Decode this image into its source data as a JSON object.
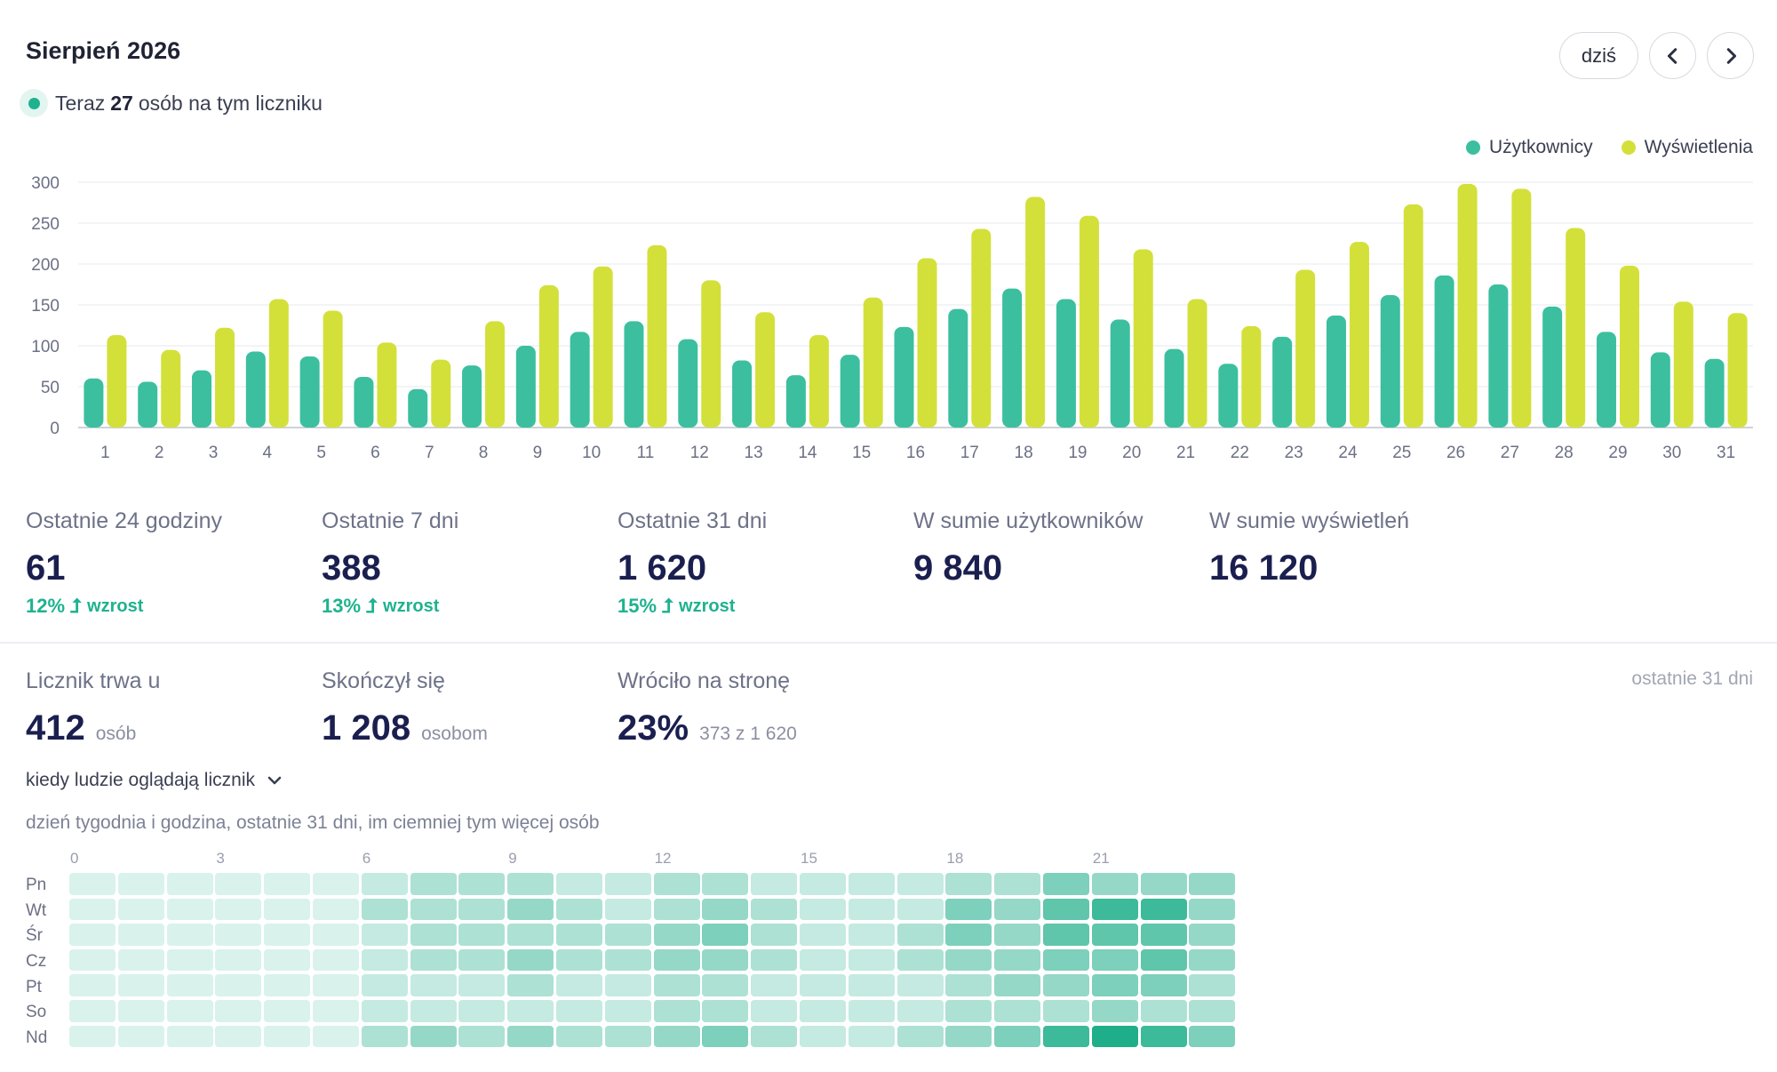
{
  "header": {
    "title": "Sierpień 2026",
    "today_label": "dziś"
  },
  "live": {
    "prefix": "Teraz",
    "count": "27",
    "suffix": "osób na tym liczniku"
  },
  "colors": {
    "users": "#3bbf9f",
    "views": "#d3e03a",
    "accent": "#1fb28f",
    "value": "#1a1f4f"
  },
  "chart_data": {
    "type": "bar",
    "categories": [
      "1",
      "2",
      "3",
      "4",
      "5",
      "6",
      "7",
      "8",
      "9",
      "10",
      "11",
      "12",
      "13",
      "14",
      "15",
      "16",
      "17",
      "18",
      "19",
      "20",
      "21",
      "22",
      "23",
      "24",
      "25",
      "26",
      "27",
      "28",
      "29",
      "30",
      "31"
    ],
    "series": [
      {
        "name": "Użytkownicy",
        "color": "#3bbf9f",
        "values": [
          60,
          56,
          70,
          93,
          87,
          62,
          47,
          76,
          100,
          117,
          130,
          108,
          82,
          64,
          89,
          123,
          145,
          170,
          157,
          132,
          96,
          78,
          111,
          137,
          162,
          186,
          175,
          148,
          117,
          92,
          84
        ]
      },
      {
        "name": "Wyświetlenia",
        "color": "#d3e03a",
        "values": [
          113,
          95,
          122,
          157,
          143,
          104,
          83,
          130,
          174,
          197,
          223,
          180,
          141,
          113,
          159,
          207,
          243,
          282,
          259,
          218,
          157,
          124,
          193,
          227,
          273,
          298,
          292,
          244,
          198,
          154,
          140
        ]
      }
    ],
    "yticks": [
      0,
      50,
      100,
      150,
      200,
      250,
      300
    ],
    "ylim": [
      0,
      300
    ],
    "grid": true,
    "legend": "top-right"
  },
  "stats": [
    {
      "label": "Ostatnie 24 godziny",
      "value": "61",
      "change": "12%",
      "change_word": "wzrost"
    },
    {
      "label": "Ostatnie 7 dni",
      "value": "388",
      "change": "13%",
      "change_word": "wzrost"
    },
    {
      "label": "Ostatnie 31 dni",
      "value": "1 620",
      "change": "15%",
      "change_word": "wzrost"
    },
    {
      "label": "W sumie użytkowników",
      "value": "9 840"
    },
    {
      "label": "W sumie wyświetleń",
      "value": "16 120"
    }
  ],
  "retention": {
    "period_label": "ostatnie 31 dni",
    "items": [
      {
        "label": "Licznik trwa u",
        "value": "412",
        "unit": "osób"
      },
      {
        "label": "Skończył się",
        "value": "1 208",
        "unit": "osobom"
      },
      {
        "label": "Wróciło na stronę",
        "value": "23%",
        "unit": "373 z 1 620"
      }
    ]
  },
  "heatmap": {
    "toggle_label": "kiedy ludzie oglądają licznik",
    "description": "dzień tygodnia i godzina, ostatnie 31 dni, im ciemniej tym więcej osób",
    "hour_labels": [
      "0",
      "3",
      "6",
      "9",
      "12",
      "15",
      "18",
      "21"
    ],
    "days": [
      "Pn",
      "Wt",
      "Śr",
      "Cz",
      "Pt",
      "So",
      "Nd"
    ],
    "levels": [
      [
        1,
        1,
        1,
        1,
        1,
        1,
        2,
        3,
        3,
        3,
        2,
        2,
        3,
        3,
        2,
        2,
        2,
        2,
        3,
        3,
        5,
        4,
        4,
        4
      ],
      [
        1,
        1,
        1,
        1,
        1,
        1,
        3,
        3,
        3,
        4,
        3,
        2,
        3,
        4,
        3,
        2,
        2,
        2,
        5,
        4,
        6,
        7,
        7,
        4
      ],
      [
        1,
        1,
        1,
        1,
        1,
        1,
        2,
        3,
        3,
        3,
        3,
        3,
        4,
        5,
        3,
        2,
        2,
        3,
        5,
        4,
        6,
        6,
        6,
        4
      ],
      [
        1,
        1,
        1,
        1,
        1,
        1,
        2,
        3,
        3,
        4,
        3,
        3,
        4,
        4,
        3,
        2,
        2,
        3,
        4,
        4,
        5,
        5,
        6,
        4
      ],
      [
        1,
        1,
        1,
        1,
        1,
        1,
        2,
        2,
        2,
        3,
        2,
        2,
        3,
        3,
        2,
        2,
        2,
        2,
        3,
        4,
        4,
        5,
        5,
        3
      ],
      [
        1,
        1,
        1,
        1,
        1,
        1,
        2,
        2,
        2,
        2,
        2,
        2,
        3,
        3,
        2,
        2,
        2,
        2,
        3,
        3,
        3,
        4,
        3,
        3
      ],
      [
        1,
        1,
        1,
        1,
        1,
        1,
        3,
        4,
        3,
        4,
        3,
        3,
        4,
        5,
        3,
        2,
        2,
        3,
        4,
        5,
        7,
        8,
        7,
        5
      ]
    ],
    "palette": [
      "#d9f2ec",
      "#c4eae1",
      "#ade1d4",
      "#95d8c7",
      "#7dd0bb",
      "#5fc5ab",
      "#3dba9a",
      "#1fae8a"
    ]
  }
}
